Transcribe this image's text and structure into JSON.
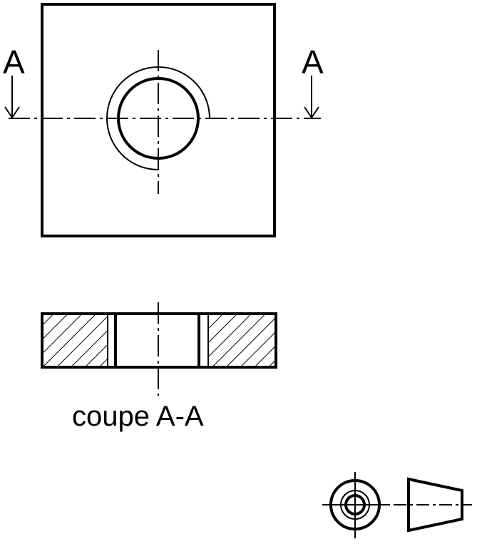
{
  "labels": {
    "section_mark_left": "A",
    "section_mark_right": "A",
    "section_caption": "coupe A-A"
  },
  "colors": {
    "ink": "#000000",
    "background": "#ffffff"
  }
}
